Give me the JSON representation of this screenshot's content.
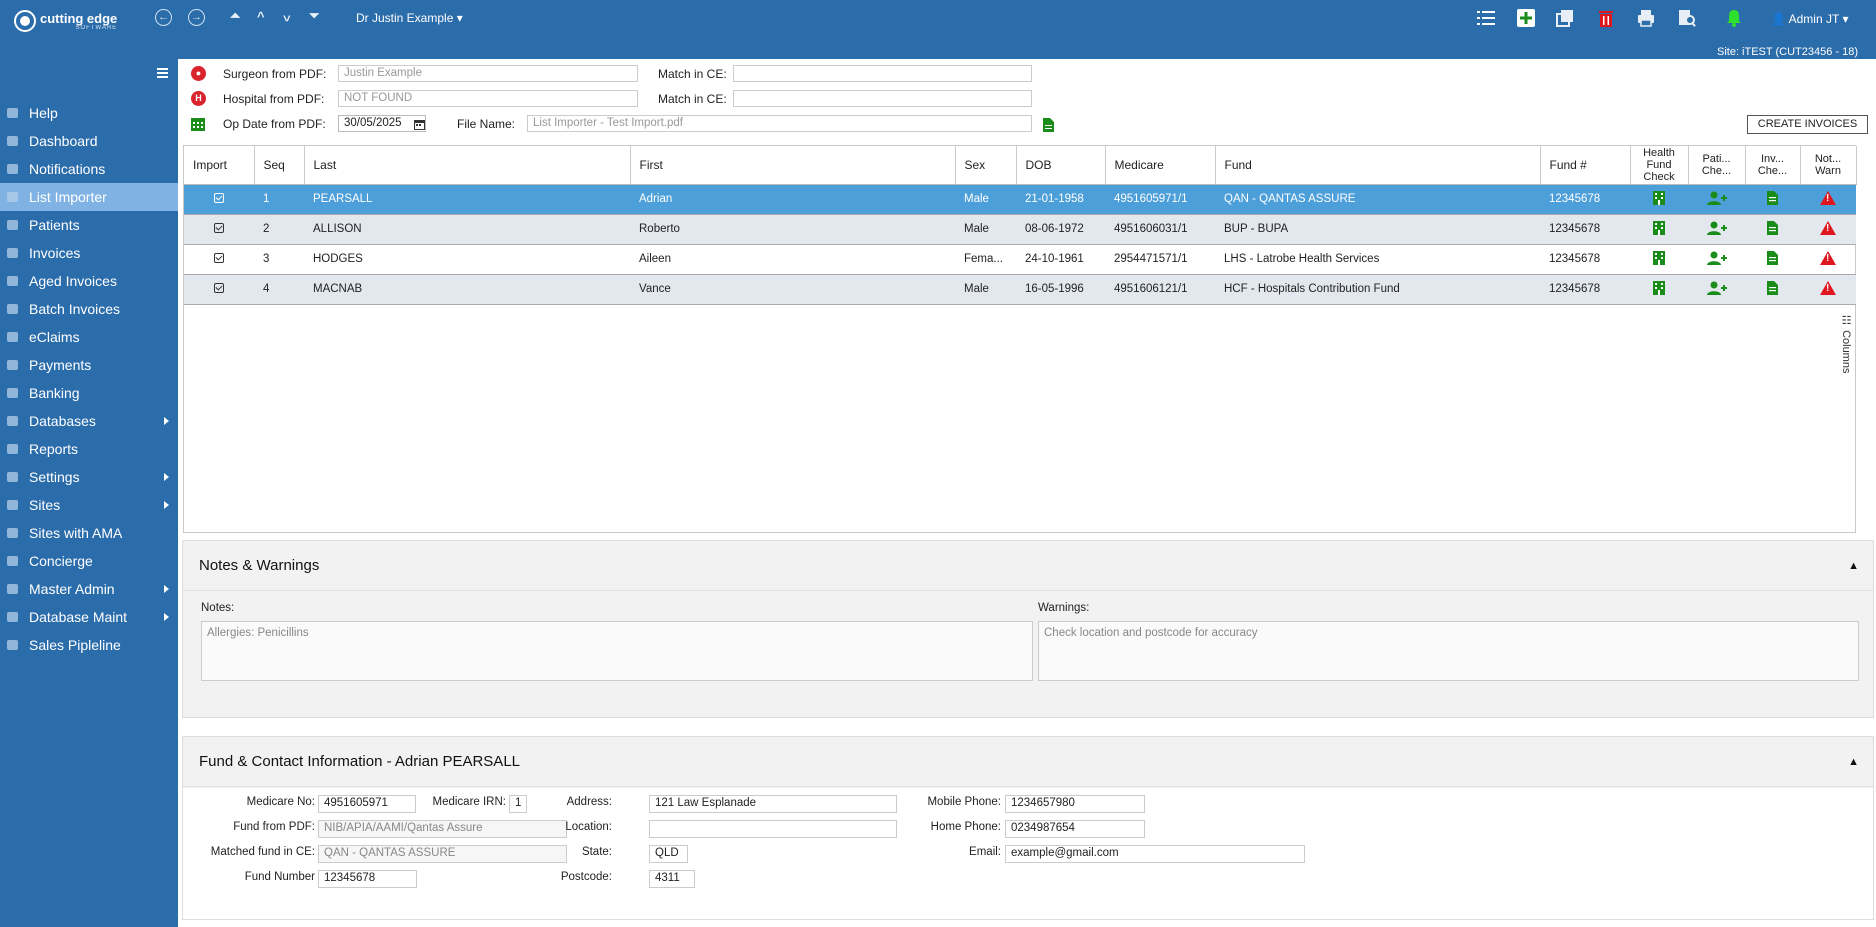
{
  "brand": {
    "name": "cutting edge",
    "tag": "SOFTWARE"
  },
  "header": {
    "doctor": "Dr Justin Example",
    "admin": "Admin JT",
    "site": "Site: iTEST (CUT23456 - 18)"
  },
  "colors": {
    "primary": "#2b6cab",
    "selected_row": "#4d9fd9",
    "green": "#1a8c1a",
    "red": "#e0161e"
  },
  "sidebar": {
    "items": [
      {
        "label": "Help",
        "arrow": false
      },
      {
        "label": "Dashboard",
        "arrow": false
      },
      {
        "label": "Notifications",
        "arrow": false
      },
      {
        "label": "List Importer",
        "arrow": false
      },
      {
        "label": "Patients",
        "arrow": false
      },
      {
        "label": "Invoices",
        "arrow": false
      },
      {
        "label": "Aged Invoices",
        "arrow": false
      },
      {
        "label": "Batch Invoices",
        "arrow": false
      },
      {
        "label": "eClaims",
        "arrow": false
      },
      {
        "label": "Payments",
        "arrow": false
      },
      {
        "label": "Banking",
        "arrow": false
      },
      {
        "label": "Databases",
        "arrow": true
      },
      {
        "label": "Reports",
        "arrow": false
      },
      {
        "label": "Settings",
        "arrow": true
      },
      {
        "label": "Sites",
        "arrow": true
      },
      {
        "label": "Sites with AMA",
        "arrow": false
      },
      {
        "label": "Concierge",
        "arrow": false
      },
      {
        "label": "Master Admin",
        "arrow": true
      },
      {
        "label": "Database Maint",
        "arrow": true
      },
      {
        "label": "Sales Pipleline",
        "arrow": false
      }
    ]
  },
  "form": {
    "surgeon_label": "Surgeon from PDF:",
    "surgeon_value": "Justin Example",
    "match_label": "Match in CE:",
    "match_value_1": "",
    "hospital_label": "Hospital from PDF:",
    "hospital_value": "NOT FOUND",
    "match_value_2": "",
    "opdate_label": "Op Date from PDF:",
    "opdate_value": "30/05/2025",
    "filename_label": "File Name:",
    "filename_value": "List Importer - Test Import.pdf",
    "create_button": "CREATE INVOICES"
  },
  "grid": {
    "columns": [
      "Import",
      "Seq",
      "Last",
      "First",
      "Sex",
      "DOB",
      "Medicare",
      "Fund",
      "Fund #",
      "Health Fund Check",
      "Pati... Che...",
      "Inv... Che...",
      "Not... Warn"
    ],
    "columns_toggle": "Columns",
    "rows": [
      {
        "seq": "1",
        "last": "PEARSALL",
        "first": "Adrian",
        "sex": "Male",
        "dob": "21-01-1958",
        "medicare": "4951605971/1",
        "fund": "QAN - QANTAS ASSURE",
        "fundno": "12345678"
      },
      {
        "seq": "2",
        "last": "ALLISON",
        "first": "Roberto",
        "sex": "Male",
        "dob": "08-06-1972",
        "medicare": "4951606031/1",
        "fund": "BUP - BUPA",
        "fundno": "12345678"
      },
      {
        "seq": "3",
        "last": "HODGES",
        "first": "Aileen",
        "sex": "Fema...",
        "dob": "24-10-1961",
        "medicare": "2954471571/1",
        "fund": "LHS - Latrobe Health Services",
        "fundno": "12345678"
      },
      {
        "seq": "4",
        "last": "MACNAB",
        "first": "Vance",
        "sex": "Male",
        "dob": "16-05-1996",
        "medicare": "4951606121/1",
        "fund": "HCF - Hospitals Contribution Fund",
        "fundno": "12345678"
      }
    ]
  },
  "notes_panel": {
    "title": "Notes & Warnings",
    "notes_label": "Notes:",
    "notes_value": "Allergies: Penicillins",
    "warnings_label": "Warnings:",
    "warnings_value": "Check location and postcode for accuracy"
  },
  "fund_panel": {
    "title": "Fund & Contact Information - Adrian PEARSALL",
    "medicare_no_label": "Medicare No:",
    "medicare_no": "4951605971",
    "irn_label": "Medicare IRN:",
    "irn": "1",
    "fund_pdf_label": "Fund from PDF:",
    "fund_pdf": "NIB/APIA/AAMI/Qantas Assure",
    "matched_label": "Matched fund in CE:",
    "matched": "QAN - QANTAS ASSURE",
    "fund_number_label": "Fund Number",
    "fund_number": "12345678",
    "address_label": "Address:",
    "address": "121 Law Esplanade",
    "location_label": "Location:",
    "location": "",
    "state_label": "State:",
    "state": "QLD",
    "postcode_label": "Postcode:",
    "postcode": "4311",
    "mobile_label": "Mobile Phone:",
    "mobile": "1234657980",
    "home_label": "Home Phone:",
    "home": "0234987654",
    "email_label": "Email:",
    "email": "example@gmail.com"
  }
}
